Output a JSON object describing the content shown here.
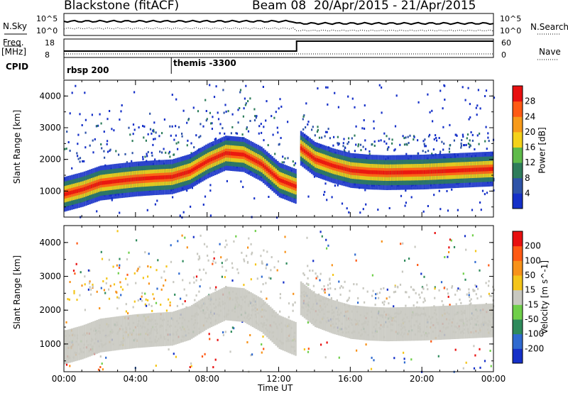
{
  "header": {
    "station": "Blackstone (fitACF)",
    "beam": "Beam 08",
    "date_range": "20/Apr/2015 - 21/Apr/2015"
  },
  "top_panels": {
    "nsky_label": "N.Sky",
    "nsearch_label": "N.Search",
    "nsky_ticks": [
      "10^5",
      "10^0"
    ],
    "nsearch_ticks": [
      "10^5",
      "10^0"
    ],
    "freq_label": "Freq.",
    "freq_unit": "[MHz]",
    "freq_ticks": [
      "18",
      "8"
    ],
    "nave_label": "Nave",
    "nave_ticks": [
      "60",
      "0"
    ],
    "cpid_label": "CPID",
    "cpid_segments": [
      {
        "label": "rbsp 200",
        "start_hour": 0
      },
      {
        "label": "themis -3300",
        "start_hour": 6
      }
    ]
  },
  "chart_data": [
    {
      "type": "heatmap",
      "title": "",
      "ylabel": "Slant Range [km]",
      "xlabel": "",
      "x_range_hours": [
        0,
        24
      ],
      "ylim": [
        180,
        4500
      ],
      "y_ticks": [
        1000,
        2000,
        3000,
        4000
      ],
      "colorbar": {
        "label": "Power [dB]",
        "ticks": [
          "4",
          "8",
          "12",
          "16",
          "20",
          "24",
          "28"
        ],
        "colors": [
          "#1530c8",
          "#2e53a8",
          "#2e7d5b",
          "#5fbb4a",
          "#f4d21a",
          "#f79a1a",
          "#ff5a14",
          "#e81010"
        ]
      },
      "echo_band_center_km": [
        {
          "hour": 0,
          "km": 900
        },
        {
          "hour": 1,
          "km": 1050
        },
        {
          "hour": 2,
          "km": 1250
        },
        {
          "hour": 3,
          "km": 1320
        },
        {
          "hour": 4,
          "km": 1380
        },
        {
          "hour": 5,
          "km": 1420
        },
        {
          "hour": 6,
          "km": 1450
        },
        {
          "hour": 7,
          "km": 1620
        },
        {
          "hour": 8,
          "km": 1950
        },
        {
          "hour": 9,
          "km": 2200
        },
        {
          "hour": 10,
          "km": 2150
        },
        {
          "hour": 11,
          "km": 1850
        },
        {
          "hour": 12,
          "km": 1350
        },
        {
          "hour": 12.9,
          "km": 1150
        },
        {
          "hour": 13.2,
          "km": 2350
        },
        {
          "hour": 14,
          "km": 2000
        },
        {
          "hour": 15,
          "km": 1800
        },
        {
          "hour": 16,
          "km": 1650
        },
        {
          "hour": 17,
          "km": 1600
        },
        {
          "hour": 18,
          "km": 1580
        },
        {
          "hour": 20,
          "km": 1600
        },
        {
          "hour": 22,
          "km": 1650
        },
        {
          "hour": 24,
          "km": 1700
        }
      ]
    },
    {
      "type": "heatmap",
      "title": "",
      "ylabel": "Slant Range [km]",
      "xlabel": "Time UT",
      "x_range_hours": [
        0,
        24
      ],
      "x_ticks": [
        "00:00",
        "04:00",
        "08:00",
        "12:00",
        "16:00",
        "20:00",
        "00:00"
      ],
      "ylim": [
        180,
        4500
      ],
      "y_ticks": [
        1000,
        2000,
        3000,
        4000
      ],
      "colorbar": {
        "label": "Velocity [m s^-1]",
        "ticks": [
          "200",
          "100",
          "50",
          "15",
          "-15",
          "-50",
          "-100",
          "-200"
        ],
        "colors": [
          "#1530c8",
          "#2f6ad0",
          "#2e8a5b",
          "#6fcf4a",
          "#c8c8c0",
          "#f4c51a",
          "#f7921a",
          "#ff5a14",
          "#e81010"
        ]
      }
    }
  ]
}
